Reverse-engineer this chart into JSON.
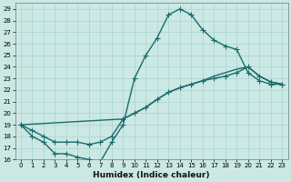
{
  "xlabel": "Humidex (Indice chaleur)",
  "bg_color": "#cbe8e4",
  "grid_color": "#a8d4ce",
  "line_color": "#1a6b6b",
  "xlim": [
    -0.5,
    23.5
  ],
  "ylim": [
    16,
    29.5
  ],
  "xticks": [
    0,
    1,
    2,
    3,
    4,
    5,
    6,
    7,
    8,
    9,
    10,
    11,
    12,
    13,
    14,
    15,
    16,
    17,
    18,
    19,
    20,
    21,
    22,
    23
  ],
  "yticks": [
    16,
    17,
    18,
    19,
    20,
    21,
    22,
    23,
    24,
    25,
    26,
    27,
    28,
    29
  ],
  "line1_x": [
    0,
    1,
    2,
    3,
    4,
    5,
    6,
    7,
    8,
    9,
    10,
    11,
    12,
    13,
    14,
    15,
    16,
    17,
    18,
    19,
    20,
    21,
    22,
    23
  ],
  "line1_y": [
    19,
    18,
    17.5,
    16.5,
    16.5,
    16.2,
    16.0,
    15.8,
    17.5,
    19,
    23,
    25,
    26.5,
    28.5,
    29,
    28.5,
    27.2,
    26.3,
    25.8,
    25.5,
    23.5,
    22.8,
    22.5,
    22.5
  ],
  "line2_x": [
    0,
    9,
    10,
    11,
    12,
    13,
    14,
    15,
    16,
    17,
    18,
    19,
    20,
    21,
    22,
    23
  ],
  "line2_y": [
    19,
    19.5,
    20.0,
    20.5,
    21.2,
    21.8,
    22.2,
    22.5,
    22.8,
    23.2,
    23.5,
    23.8,
    24.0,
    23.2,
    22.7,
    22.5
  ],
  "line3_x": [
    0,
    1,
    2,
    3,
    4,
    5,
    6,
    7,
    8,
    9,
    10,
    11,
    12,
    13,
    14,
    15,
    16,
    17,
    18,
    19,
    20,
    21,
    22,
    23
  ],
  "line3_y": [
    19,
    18.5,
    18.0,
    17.5,
    17.5,
    17.5,
    17.3,
    17.5,
    18.0,
    19.5,
    20.0,
    20.5,
    21.2,
    21.8,
    22.2,
    22.5,
    22.8,
    23.0,
    23.2,
    23.5,
    24.0,
    23.2,
    22.7,
    22.5
  ]
}
